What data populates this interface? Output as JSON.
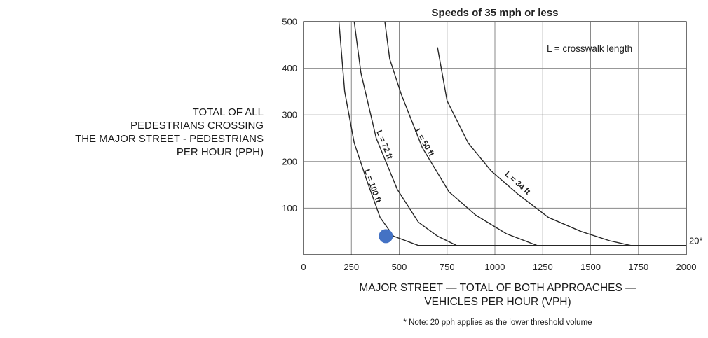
{
  "chart_data": {
    "type": "line",
    "title": "Speeds of 35 mph or less",
    "xlabel_lines": [
      "MAJOR STREET — TOTAL OF BOTH APPROACHES —",
      "VEHICLES PER HOUR (VPH)"
    ],
    "ylabel_lines": [
      "TOTAL OF ALL",
      "PEDESTRIANS CROSSING",
      "THE MAJOR STREET - PEDESTRIANS",
      "PER HOUR (PPH)"
    ],
    "xlim": [
      0,
      2000
    ],
    "ylim": [
      0,
      500
    ],
    "xticks": [
      "0",
      "250",
      "500",
      "750",
      "1000",
      "1250",
      "1500",
      "1750",
      "2000"
    ],
    "yticks": [
      "100",
      "200",
      "300",
      "400",
      "500"
    ],
    "grid": true,
    "legend_note": "L = crosswalk length",
    "threshold_label": "20*",
    "threshold_value": 20,
    "footnote": "* Note: 20 pph applies as the lower threshold volume",
    "series": [
      {
        "name": "L = 100 ft",
        "x": [
          185,
          215,
          265,
          330,
          400,
          470,
          600,
          2000
        ],
        "y": [
          500,
          350,
          240,
          160,
          80,
          40,
          20,
          20
        ]
      },
      {
        "name": "L = 72 ft",
        "x": [
          265,
          300,
          380,
          490,
          600,
          700,
          800
        ],
        "y": [
          500,
          390,
          250,
          140,
          70,
          40,
          20
        ]
      },
      {
        "name": "L = 50 ft",
        "x": [
          425,
          450,
          510,
          620,
          760,
          900,
          1060,
          1220
        ],
        "y": [
          500,
          420,
          345,
          230,
          135,
          85,
          45,
          20
        ]
      },
      {
        "name": "L = 34 ft",
        "x": [
          700,
          750,
          860,
          980,
          1120,
          1280,
          1450,
          1600,
          1710
        ],
        "y": [
          445,
          330,
          240,
          180,
          130,
          80,
          50,
          30,
          20
        ]
      }
    ],
    "highlight_point": {
      "x": 430,
      "y": 40,
      "color": "#4472c4"
    }
  }
}
